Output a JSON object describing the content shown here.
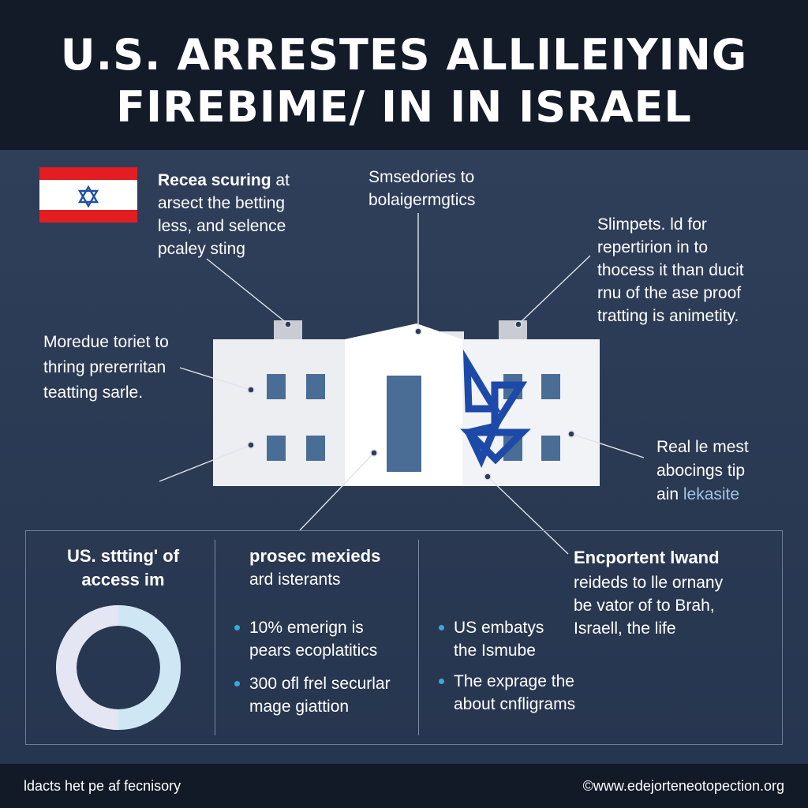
{
  "title": {
    "line1": "U.S. ARRESTES ALLILEIYING",
    "line2": "FIREBIME/ IN IN ISRAEL"
  },
  "flag": {
    "stripe_color": "#e31d22",
    "star_color": "#1f4fa3",
    "icon": "star-of-david-icon"
  },
  "callouts": {
    "top_left": {
      "bold": "Recea scuring",
      "rest": " at",
      "lines": [
        "arsect the betting",
        "less, and selence",
        "pcaley sting"
      ]
    },
    "top_center": {
      "lines": [
        "Smsedories to",
        "bolaigermgtics"
      ]
    },
    "top_right": {
      "lines": [
        "Slimpets. ld for",
        "repertirion in to",
        "thocess it than ducit",
        "rnu of the ase proof",
        "tratting is animetity."
      ]
    },
    "mid_left": {
      "lines": [
        "Moredue toriet to",
        "thring prererritan",
        "teatting sarle."
      ]
    },
    "mid_right": {
      "lines": [
        "Real le mest",
        "abocings tip"
      ],
      "line3_prefix": "ain ",
      "line3_accent": "lekasite"
    }
  },
  "panel": {
    "col1": {
      "heading": [
        "US. sttting' of",
        "access im"
      ],
      "donut": {
        "segments": [
          0.5,
          0.5
        ],
        "colors": [
          "#e4e6f4",
          "#cfe6f5"
        ],
        "icon": "donut-chart-icon"
      }
    },
    "col2": {
      "heading": "prosec mexieds",
      "subheading": "ard isterants",
      "bullets": [
        [
          "10% emerign is",
          "pears ecoplatitics"
        ],
        [
          "300 ofl frel securlar",
          "mage giattion"
        ]
      ]
    },
    "col3": {
      "bullets": [
        [
          "US embatys",
          "the Ismube"
        ],
        [
          "The exprage the",
          "about cnfligrams"
        ]
      ]
    },
    "col4": {
      "heading": "Encportent lwand",
      "lines": [
        "reideds to lle ornany",
        "be vator of to Brah,",
        "Israell, the life"
      ]
    }
  },
  "footer": {
    "left": "ldacts het pe af fecnisory",
    "right": "©www.edejorteneotopection.org"
  },
  "colors": {
    "header_bg": "#131b29",
    "body_bg": "#2e3d57",
    "bullet": "#3aa8e0",
    "window": "#4a6d96"
  }
}
